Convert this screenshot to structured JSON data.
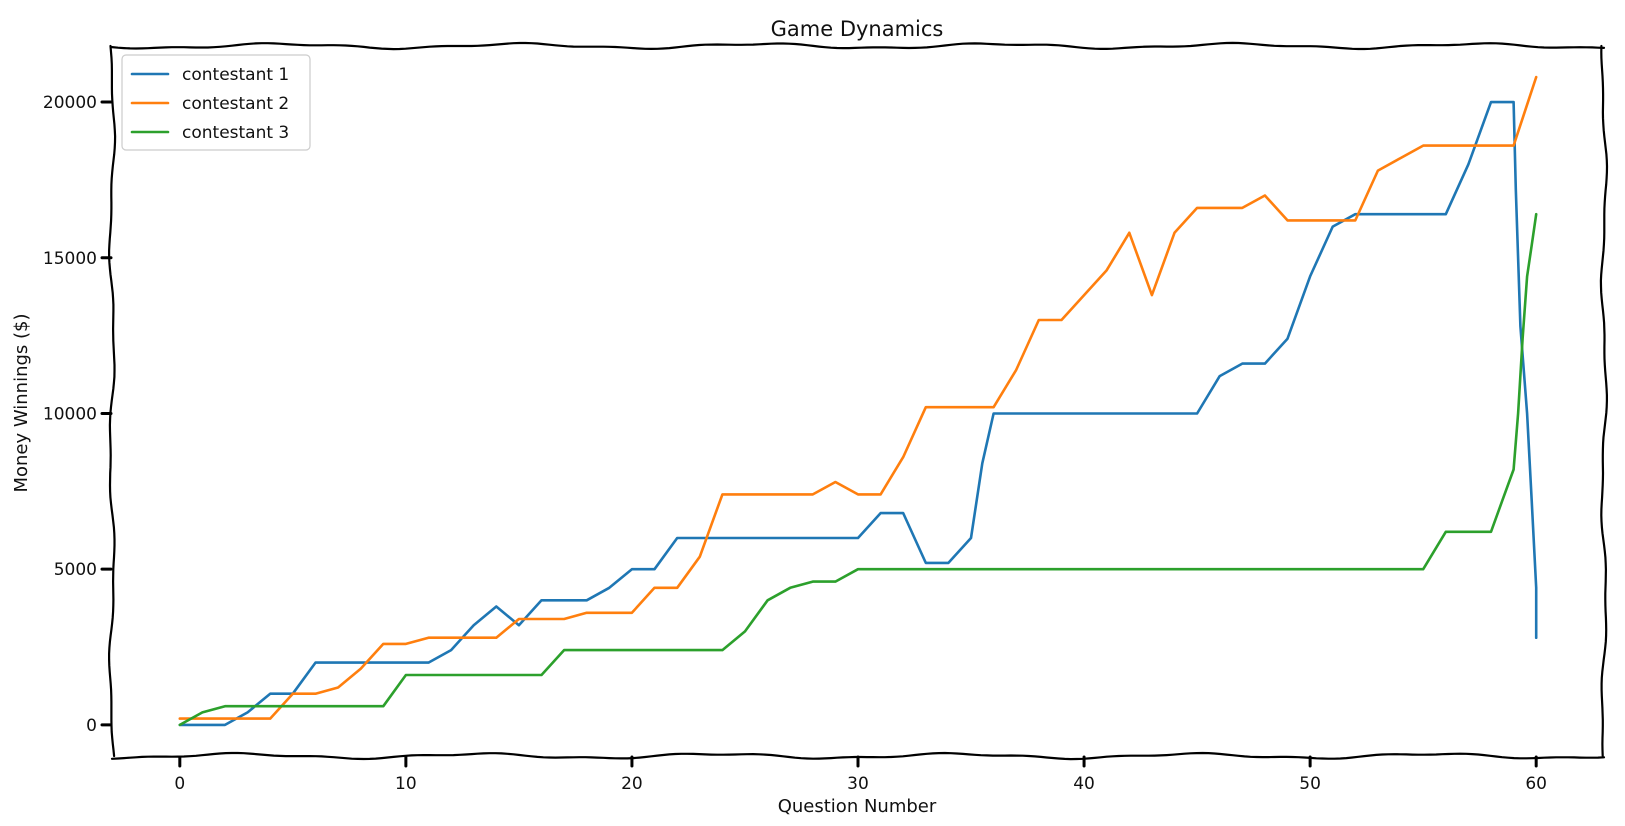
{
  "chart_data": {
    "type": "line",
    "title": "Game Dynamics",
    "xlabel": "Question Number",
    "ylabel": "Money Winnings ($)",
    "xlim": [
      -3,
      63
    ],
    "ylim": [
      -1000,
      21800
    ],
    "xticks": [
      0,
      10,
      20,
      30,
      40,
      50,
      60
    ],
    "xtick_labels": [
      "0",
      "10",
      "20",
      "30",
      "40",
      "50",
      "60"
    ],
    "yticks": [
      0,
      5000,
      10000,
      15000,
      20000
    ],
    "ytick_labels": [
      "0",
      "5000",
      "10000",
      "15000",
      "20000"
    ],
    "grid": false,
    "legend_position": "upper left",
    "series": [
      {
        "name": "contestant 1",
        "color": "#1f77b4",
        "points": [
          [
            0,
            0
          ],
          [
            1,
            0
          ],
          [
            2,
            0
          ],
          [
            3,
            400
          ],
          [
            4,
            1000
          ],
          [
            5,
            1000
          ],
          [
            6,
            2000
          ],
          [
            7,
            2000
          ],
          [
            8,
            2000
          ],
          [
            9,
            2000
          ],
          [
            10,
            2000
          ],
          [
            11,
            2000
          ],
          [
            12,
            2400
          ],
          [
            13,
            3200
          ],
          [
            14,
            3800
          ],
          [
            15,
            3200
          ],
          [
            16,
            4000
          ],
          [
            17,
            4000
          ],
          [
            18,
            4000
          ],
          [
            19,
            4400
          ],
          [
            20,
            5000
          ],
          [
            21,
            5000
          ],
          [
            22,
            6000
          ],
          [
            23,
            6000
          ],
          [
            24,
            6000
          ],
          [
            25,
            6000
          ],
          [
            26,
            6000
          ],
          [
            27,
            6000
          ],
          [
            28,
            6000
          ],
          [
            29,
            6000
          ],
          [
            30,
            6000
          ],
          [
            31,
            6800
          ],
          [
            32,
            6800
          ],
          [
            33,
            5200
          ],
          [
            34,
            5200
          ],
          [
            35,
            6000
          ],
          [
            35.5,
            8400
          ],
          [
            36,
            10000
          ],
          [
            37,
            10000
          ],
          [
            38,
            10000
          ],
          [
            39,
            10000
          ],
          [
            40,
            10000
          ],
          [
            41,
            10000
          ],
          [
            42,
            10000
          ],
          [
            43,
            10000
          ],
          [
            44,
            10000
          ],
          [
            45,
            10000
          ],
          [
            46,
            11200
          ],
          [
            47,
            11600
          ],
          [
            48,
            11600
          ],
          [
            49,
            12400
          ],
          [
            50,
            14400
          ],
          [
            51,
            16000
          ],
          [
            52,
            16400
          ],
          [
            53,
            16400
          ],
          [
            54,
            16400
          ],
          [
            55,
            16400
          ],
          [
            56,
            16400
          ],
          [
            57,
            18000
          ],
          [
            58,
            20000
          ],
          [
            59,
            20000
          ],
          [
            59.1,
            17200
          ],
          [
            59.3,
            12800
          ],
          [
            59.6,
            10000
          ],
          [
            59.8,
            7200
          ],
          [
            60,
            4400
          ],
          [
            60,
            2800
          ]
        ]
      },
      {
        "name": "contestant 2",
        "color": "#ff7f0e",
        "points": [
          [
            0,
            200
          ],
          [
            1,
            200
          ],
          [
            2,
            200
          ],
          [
            3,
            200
          ],
          [
            4,
            200
          ],
          [
            5,
            1000
          ],
          [
            6,
            1000
          ],
          [
            7,
            1200
          ],
          [
            8,
            1800
          ],
          [
            9,
            2600
          ],
          [
            10,
            2600
          ],
          [
            11,
            2800
          ],
          [
            12,
            2800
          ],
          [
            13,
            2800
          ],
          [
            14,
            2800
          ],
          [
            15,
            3400
          ],
          [
            16,
            3400
          ],
          [
            17,
            3400
          ],
          [
            18,
            3600
          ],
          [
            19,
            3600
          ],
          [
            20,
            3600
          ],
          [
            21,
            4400
          ],
          [
            22,
            4400
          ],
          [
            23,
            5400
          ],
          [
            24,
            7400
          ],
          [
            25,
            7400
          ],
          [
            26,
            7400
          ],
          [
            27,
            7400
          ],
          [
            28,
            7400
          ],
          [
            29,
            7800
          ],
          [
            30,
            7400
          ],
          [
            31,
            7400
          ],
          [
            32,
            8600
          ],
          [
            33,
            10200
          ],
          [
            34,
            10200
          ],
          [
            35,
            10200
          ],
          [
            36,
            10200
          ],
          [
            37,
            11400
          ],
          [
            38,
            13000
          ],
          [
            39,
            13000
          ],
          [
            40,
            13800
          ],
          [
            41,
            14600
          ],
          [
            42,
            15800
          ],
          [
            43,
            13800
          ],
          [
            44,
            15800
          ],
          [
            45,
            16600
          ],
          [
            46,
            16600
          ],
          [
            47,
            16600
          ],
          [
            48,
            17000
          ],
          [
            49,
            16200
          ],
          [
            50,
            16200
          ],
          [
            51,
            16200
          ],
          [
            52,
            16200
          ],
          [
            53,
            17800
          ],
          [
            54,
            18200
          ],
          [
            55,
            18600
          ],
          [
            56,
            18600
          ],
          [
            57,
            18600
          ],
          [
            58,
            18600
          ],
          [
            59,
            18600
          ],
          [
            60,
            20800
          ]
        ]
      },
      {
        "name": "contestant 3",
        "color": "#2ca02c",
        "points": [
          [
            0,
            0
          ],
          [
            1,
            400
          ],
          [
            2,
            600
          ],
          [
            3,
            600
          ],
          [
            4,
            600
          ],
          [
            5,
            600
          ],
          [
            6,
            600
          ],
          [
            7,
            600
          ],
          [
            8,
            600
          ],
          [
            9,
            600
          ],
          [
            10,
            1600
          ],
          [
            11,
            1600
          ],
          [
            12,
            1600
          ],
          [
            13,
            1600
          ],
          [
            14,
            1600
          ],
          [
            15,
            1600
          ],
          [
            16,
            1600
          ],
          [
            17,
            2400
          ],
          [
            18,
            2400
          ],
          [
            19,
            2400
          ],
          [
            20,
            2400
          ],
          [
            21,
            2400
          ],
          [
            22,
            2400
          ],
          [
            23,
            2400
          ],
          [
            24,
            2400
          ],
          [
            25,
            3000
          ],
          [
            26,
            4000
          ],
          [
            27,
            4400
          ],
          [
            28,
            4600
          ],
          [
            29,
            4600
          ],
          [
            30,
            5000
          ],
          [
            31,
            5000
          ],
          [
            32,
            5000
          ],
          [
            33,
            5000
          ],
          [
            34,
            5000
          ],
          [
            35,
            5000
          ],
          [
            36,
            5000
          ],
          [
            37,
            5000
          ],
          [
            38,
            5000
          ],
          [
            39,
            5000
          ],
          [
            40,
            5000
          ],
          [
            41,
            5000
          ],
          [
            42,
            5000
          ],
          [
            43,
            5000
          ],
          [
            44,
            5000
          ],
          [
            45,
            5000
          ],
          [
            46,
            5000
          ],
          [
            47,
            5000
          ],
          [
            48,
            5000
          ],
          [
            49,
            5000
          ],
          [
            50,
            5000
          ],
          [
            51,
            5000
          ],
          [
            52,
            5000
          ],
          [
            53,
            5000
          ],
          [
            54,
            5000
          ],
          [
            55,
            5000
          ],
          [
            56,
            6200
          ],
          [
            57,
            6200
          ],
          [
            58,
            6200
          ],
          [
            58.5,
            7200
          ],
          [
            59,
            8200
          ],
          [
            59.2,
            10000
          ],
          [
            59.4,
            12400
          ],
          [
            59.6,
            14400
          ],
          [
            59.8,
            15400
          ],
          [
            60,
            16400
          ]
        ]
      }
    ]
  }
}
